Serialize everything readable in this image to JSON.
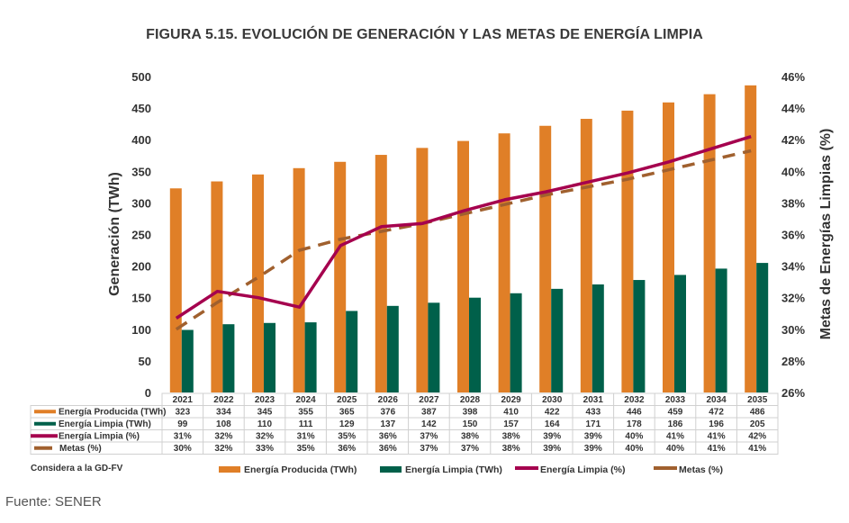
{
  "chart_data": {
    "type": "bar",
    "title": "FIGURA 5.15. EVOLUCIÓN DE GENERACIÓN Y LAS METAS DE ENERGÍA LIMPIA",
    "xlabel": "",
    "ylabel": "Generación (TWh)",
    "y2label": "Metas de Energías Limpias (%)",
    "ylim": [
      0,
      500
    ],
    "y2lim": [
      26,
      46
    ],
    "yticks": [
      "0",
      "50",
      "100",
      "150",
      "200",
      "250",
      "300",
      "350",
      "400",
      "450",
      "500"
    ],
    "y2ticks": [
      "26%",
      "28%",
      "30%",
      "32%",
      "34%",
      "36%",
      "38%",
      "40%",
      "42%",
      "44%",
      "46%"
    ],
    "grid": false,
    "legend_position": "bottom",
    "categories": [
      "2021",
      "2022",
      "2023",
      "2024",
      "2025",
      "2026",
      "2027",
      "2028",
      "2029",
      "2030",
      "2031",
      "2032",
      "2033",
      "2034",
      "2035"
    ],
    "series": [
      {
        "name": "Energía Producida (TWh)",
        "type": "bar",
        "axis": "left",
        "color": "#E07F27",
        "values": [
          323,
          334,
          345,
          355,
          365,
          376,
          387,
          398,
          410,
          422,
          433,
          446,
          459,
          472,
          486
        ]
      },
      {
        "name": "Energía Limpia (TWh)",
        "type": "bar",
        "axis": "left",
        "color": "#00604A",
        "values": [
          99,
          108,
          110,
          111,
          129,
          137,
          142,
          150,
          157,
          164,
          171,
          178,
          186,
          196,
          205
        ]
      },
      {
        "name": "Energía Limpia (%)",
        "type": "line",
        "axis": "right",
        "color": "#A5004E",
        "values": [
          30.7,
          32.4,
          32.0,
          31.4,
          35.3,
          36.5,
          36.7,
          37.5,
          38.2,
          38.7,
          39.3,
          39.9,
          40.6,
          41.4,
          42.2
        ],
        "table_labels": [
          "31%",
          "32%",
          "32%",
          "31%",
          "35%",
          "36%",
          "37%",
          "38%",
          "38%",
          "39%",
          "39%",
          "40%",
          "41%",
          "41%",
          "42%"
        ]
      },
      {
        "name": "Metas (%)",
        "type": "line",
        "dashed": true,
        "axis": "right",
        "color": "#A0602E",
        "values": [
          30.0,
          31.7,
          33.3,
          35.0,
          35.7,
          36.2,
          36.7,
          37.3,
          37.9,
          38.5,
          39.0,
          39.5,
          40.1,
          40.7,
          41.3
        ],
        "table_labels": [
          "30%",
          "32%",
          "33%",
          "35%",
          "36%",
          "36%",
          "37%",
          "37%",
          "38%",
          "39%",
          "39%",
          "40%",
          "40%",
          "41%",
          "41%"
        ]
      }
    ],
    "table_row_labels": [
      "Energía Producida (TWh)",
      "Energía Limpia (TWh)",
      "Energía Limpia (%)",
      "Metas (%)"
    ]
  },
  "note": "Considera a la GD-FV",
  "source": "Fuente: SENER"
}
